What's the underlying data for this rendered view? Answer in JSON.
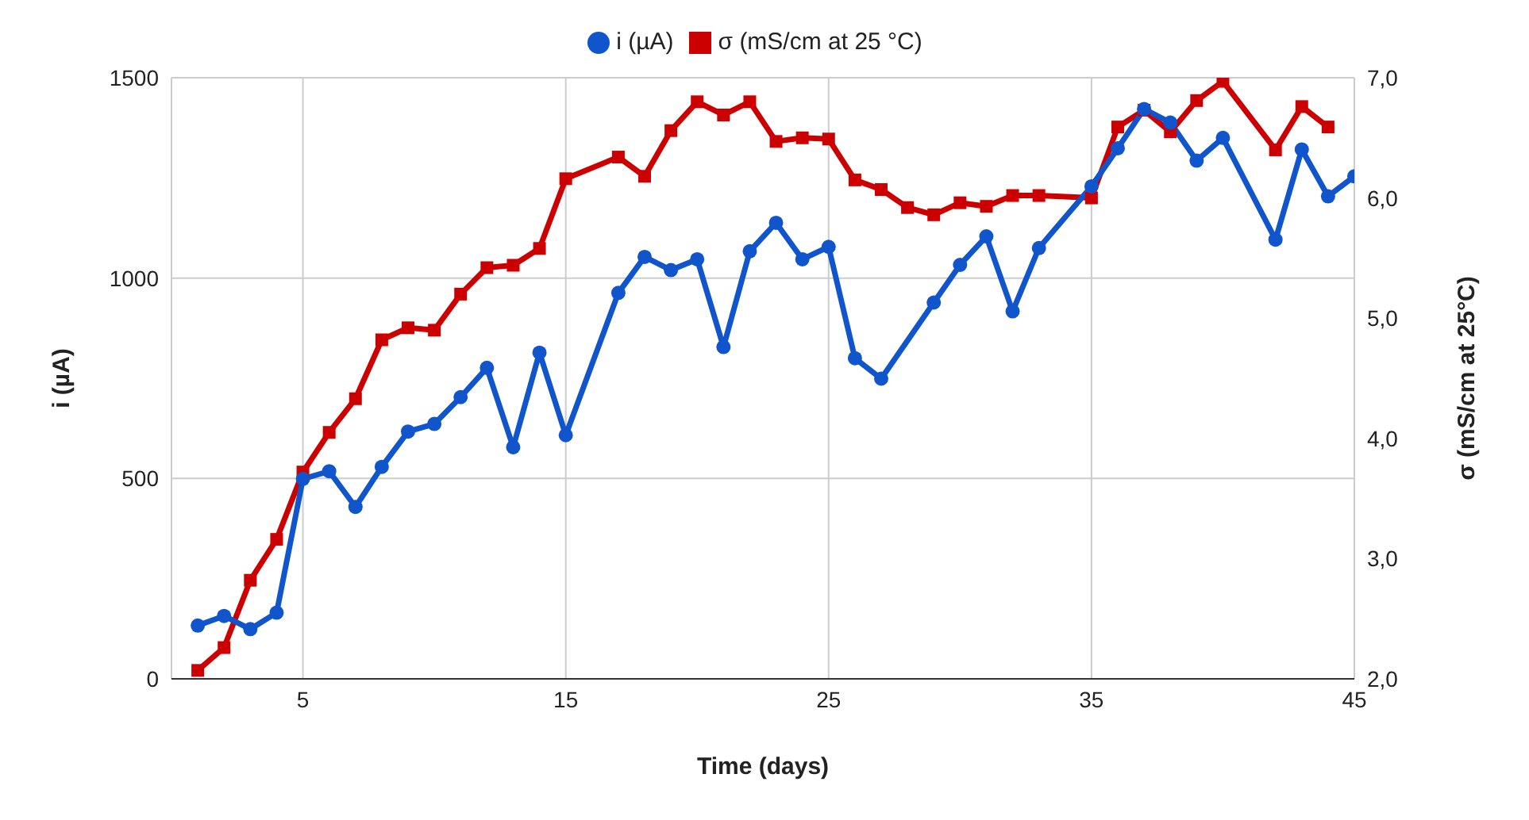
{
  "chart_data": {
    "type": "line",
    "xlabel": "Time (days)",
    "ylabel": "i (µA)",
    "y2label": "σ (mS/cm at 25°C)",
    "xlim": [
      0,
      45
    ],
    "xticks": [
      5,
      15,
      25,
      35,
      45
    ],
    "ylim": [
      0,
      1500
    ],
    "yticks": [
      0,
      500,
      1000,
      1500
    ],
    "y2lim": [
      2,
      7
    ],
    "y2ticks": [
      {
        "value": 2,
        "label": "2,0"
      },
      {
        "value": 3,
        "label": "3,0"
      },
      {
        "value": 4,
        "label": "4,0"
      },
      {
        "value": 5,
        "label": "5,0"
      },
      {
        "value": 6,
        "label": "6,0"
      },
      {
        "value": 7,
        "label": "7,0"
      }
    ],
    "grid": true,
    "legend": "top",
    "series": [
      {
        "name": "i (µA)",
        "color": "#1155cc",
        "marker": "circle",
        "x": [
          1,
          2,
          3,
          4,
          5,
          6,
          7,
          8,
          9,
          10,
          11,
          12,
          13,
          14,
          15,
          17,
          18,
          19,
          20,
          21,
          22,
          23,
          24,
          25,
          26,
          27,
          29,
          30,
          31,
          32,
          33,
          35,
          36,
          37,
          38,
          39,
          40,
          42,
          43,
          44,
          45
        ],
        "values": [
          133,
          157,
          124,
          165,
          499,
          518,
          429,
          529,
          617,
          636,
          703,
          776,
          578,
          814,
          608,
          963,
          1053,
          1020,
          1047,
          828,
          1067,
          1138,
          1047,
          1078,
          800,
          749,
          939,
          1033,
          1104,
          917,
          1075,
          1229,
          1324,
          1422,
          1388,
          1293,
          1350,
          1096,
          1321,
          1204,
          1254
        ]
      },
      {
        "name": "σ (mS/cm at 25 °C)",
        "color": "#cc0000",
        "marker": "square",
        "axis": "y2",
        "x": [
          1,
          2,
          3,
          4,
          5,
          6,
          7,
          8,
          9,
          10,
          11,
          12,
          13,
          14,
          15,
          17,
          18,
          19,
          20,
          21,
          22,
          23,
          24,
          25,
          26,
          27,
          28,
          29,
          30,
          31,
          32,
          33,
          35,
          36,
          37,
          38,
          39,
          40,
          42,
          43,
          44
        ],
        "values": [
          2.07,
          2.26,
          2.82,
          3.16,
          3.72,
          4.05,
          4.33,
          4.82,
          4.92,
          4.9,
          5.2,
          5.42,
          5.44,
          5.58,
          6.16,
          6.34,
          6.18,
          6.56,
          6.8,
          6.69,
          6.8,
          6.47,
          6.5,
          6.49,
          6.15,
          6.07,
          5.92,
          5.86,
          5.96,
          5.93,
          6.02,
          6.02,
          6.0,
          6.59,
          6.73,
          6.55,
          6.81,
          6.97,
          6.4,
          6.76,
          6.59
        ]
      }
    ]
  }
}
